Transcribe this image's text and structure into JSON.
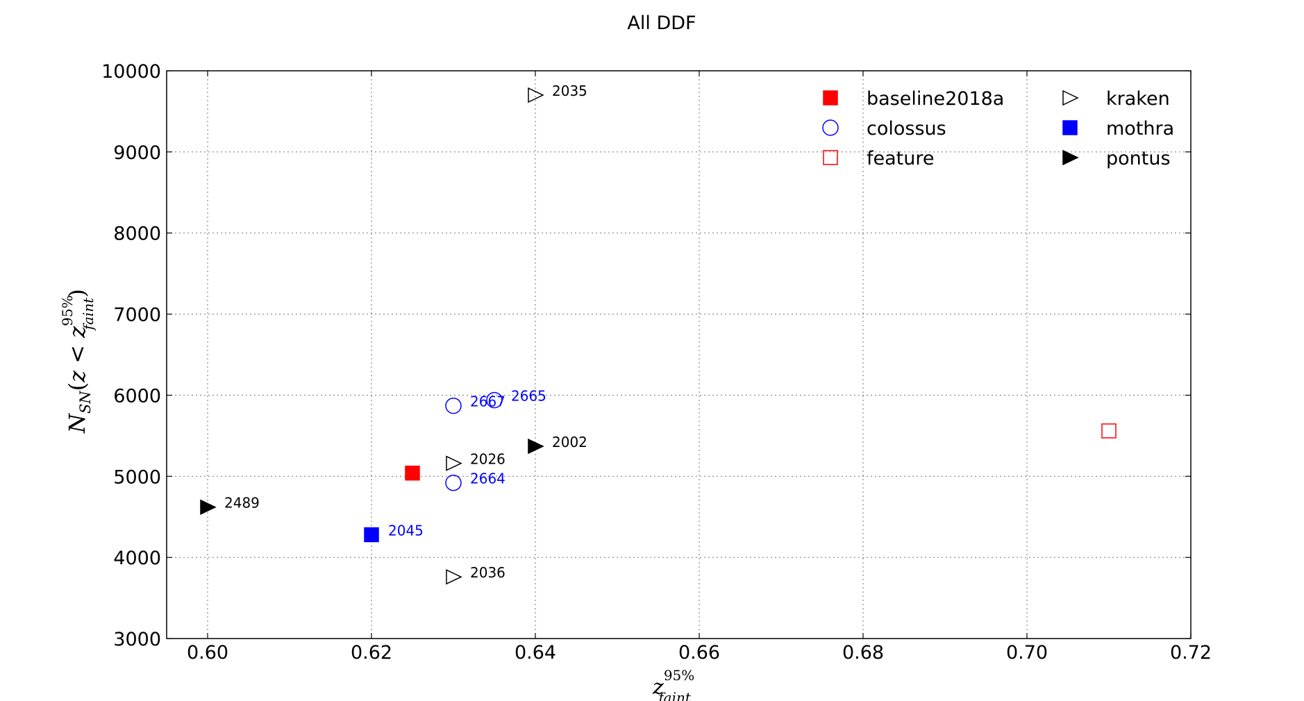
{
  "chart_data": {
    "type": "scatter",
    "title": "All DDF",
    "xlabel": "z_faint^95%",
    "ylabel": "N_SN(z < z_faint^95%)",
    "xlim": [
      0.595,
      0.72
    ],
    "ylim": [
      3000,
      10000
    ],
    "x_ticks": [
      "0.60",
      "0.62",
      "0.64",
      "0.66",
      "0.68",
      "0.70",
      "0.72"
    ],
    "x_tick_values": [
      0.6,
      0.62,
      0.64,
      0.66,
      0.68,
      0.7,
      0.72
    ],
    "y_ticks": [
      "3000",
      "4000",
      "5000",
      "6000",
      "7000",
      "8000",
      "9000",
      "10000"
    ],
    "y_tick_values": [
      3000,
      4000,
      5000,
      6000,
      7000,
      8000,
      9000,
      10000
    ],
    "grid": true,
    "legend_position": "top-right",
    "legend_columns": 2,
    "series": [
      {
        "name": "baseline2018a",
        "marker": "square",
        "filled": true,
        "color": "#ff0000",
        "points": [
          {
            "x": 0.625,
            "y": 5040,
            "label": ""
          }
        ]
      },
      {
        "name": "colossus",
        "marker": "circle",
        "filled": false,
        "color": "#0000ff",
        "points": [
          {
            "x": 0.63,
            "y": 5870,
            "label": "2667"
          },
          {
            "x": 0.635,
            "y": 5940,
            "label": "2665"
          },
          {
            "x": 0.63,
            "y": 4920,
            "label": "2664"
          }
        ]
      },
      {
        "name": "feature",
        "marker": "square",
        "filled": false,
        "color": "#ff0000",
        "points": [
          {
            "x": 0.71,
            "y": 5560,
            "label": ""
          }
        ]
      },
      {
        "name": "kraken",
        "marker": "triangle-right",
        "filled": false,
        "color": "#000000",
        "points": [
          {
            "x": 0.64,
            "y": 9700,
            "label": "2035"
          },
          {
            "x": 0.63,
            "y": 5160,
            "label": "2026"
          },
          {
            "x": 0.63,
            "y": 3760,
            "label": "2036"
          }
        ]
      },
      {
        "name": "mothra",
        "marker": "square",
        "filled": true,
        "color": "#0000ff",
        "points": [
          {
            "x": 0.62,
            "y": 4280,
            "label": "2045"
          }
        ]
      },
      {
        "name": "pontus",
        "marker": "triangle-right",
        "filled": true,
        "color": "#000000",
        "points": [
          {
            "x": 0.64,
            "y": 5370,
            "label": "2002"
          },
          {
            "x": 0.6,
            "y": 4620,
            "label": "2489"
          }
        ]
      }
    ]
  }
}
